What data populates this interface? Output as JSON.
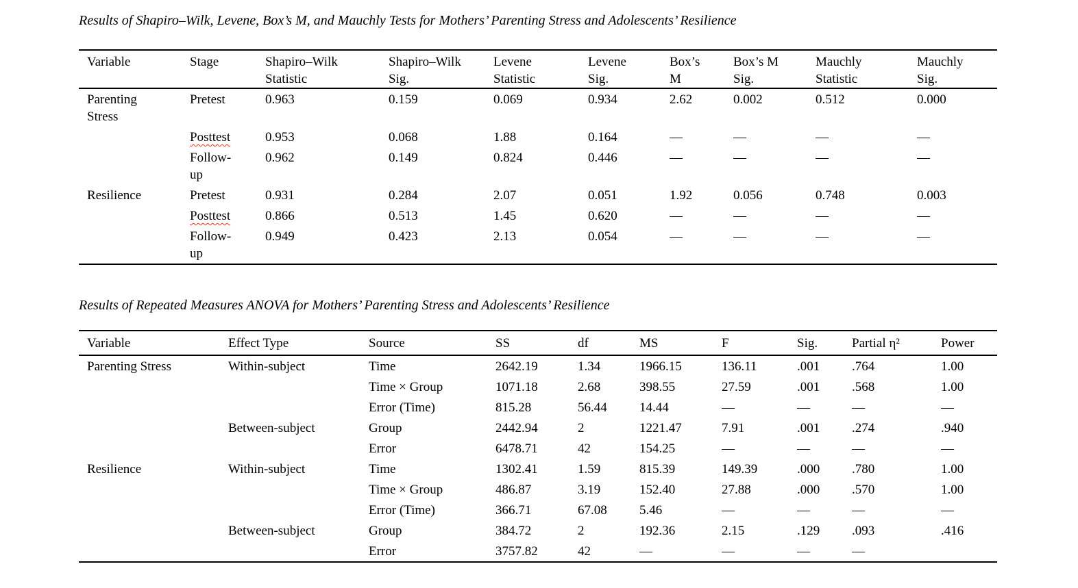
{
  "document": {
    "spellcheck_words": [
      "Posttest"
    ],
    "tables": [
      {
        "title": "Results of Shapiro–Wilk, Levene, Box’s M, and Mauchly Tests for Mothers’ Parenting Stress and Adolescents’ Resilience",
        "columns": [
          "Variable",
          "Stage",
          "Shapiro–Wilk\nStatistic",
          "Shapiro–Wilk\nSig.",
          "Levene\nStatistic",
          "Levene\nSig.",
          "Box’s\nM",
          "Box’s M\nSig.",
          "Mauchly\nStatistic",
          "Mauchly\nSig."
        ],
        "rows": [
          [
            "Parenting\nStress",
            "Pretest",
            "0.963",
            "0.159",
            "0.069",
            "0.934",
            "2.62",
            "0.002",
            "0.512",
            "0.000"
          ],
          [
            "",
            "Posttest",
            "0.953",
            "0.068",
            "1.88",
            "0.164",
            "—",
            "—",
            "—",
            "—"
          ],
          [
            "",
            "Follow-\nup",
            "0.962",
            "0.149",
            "0.824",
            "0.446",
            "—",
            "—",
            "—",
            "—"
          ],
          [
            "Resilience",
            "Pretest",
            "0.931",
            "0.284",
            "2.07",
            "0.051",
            "1.92",
            "0.056",
            "0.748",
            "0.003"
          ],
          [
            "",
            "Posttest",
            "0.866",
            "0.513",
            "1.45",
            "0.620",
            "—",
            "—",
            "—",
            "—"
          ],
          [
            "",
            "Follow-\nup",
            "0.949",
            "0.423",
            "2.13",
            "0.054",
            "—",
            "—",
            "—",
            "—"
          ]
        ]
      },
      {
        "title": "Results of Repeated Measures ANOVA for Mothers’ Parenting Stress and Adolescents’ Resilience",
        "columns": [
          "Variable",
          "Effect Type",
          "Source",
          "SS",
          "df",
          "MS",
          "F",
          "Sig.",
          "Partial η²",
          "Power"
        ],
        "rows": [
          [
            "Parenting Stress",
            "Within-subject",
            "Time",
            "2642.19",
            "1.34",
            "1966.15",
            "136.11",
            ".001",
            ".764",
            "1.00"
          ],
          [
            "",
            "",
            "Time × Group",
            "1071.18",
            "2.68",
            "398.55",
            "27.59",
            ".001",
            ".568",
            "1.00"
          ],
          [
            "",
            "",
            "Error (Time)",
            "815.28",
            "56.44",
            "14.44",
            "—",
            "—",
            "—",
            "—"
          ],
          [
            "",
            "Between-subject",
            "Group",
            "2442.94",
            "2",
            "1221.47",
            "7.91",
            ".001",
            ".274",
            ".940"
          ],
          [
            "",
            "",
            "Error",
            "6478.71",
            "42",
            "154.25",
            "—",
            "—",
            "—",
            "—"
          ],
          [
            "Resilience",
            "Within-subject",
            "Time",
            "1302.41",
            "1.59",
            "815.39",
            "149.39",
            ".000",
            ".780",
            "1.00"
          ],
          [
            "",
            "",
            "Time × Group",
            "486.87",
            "3.19",
            "152.40",
            "27.88",
            ".000",
            ".570",
            "1.00"
          ],
          [
            "",
            "",
            "Error (Time)",
            "366.71",
            "67.08",
            "5.46",
            "—",
            "—",
            "—",
            "—"
          ],
          [
            "",
            "Between-subject",
            "Group",
            "384.72",
            "2",
            "192.36",
            "2.15",
            ".129",
            ".093",
            ".416"
          ],
          [
            "",
            "",
            "Error",
            "3757.82",
            "42",
            "—",
            "—",
            "—",
            "—",
            ""
          ]
        ]
      }
    ]
  }
}
